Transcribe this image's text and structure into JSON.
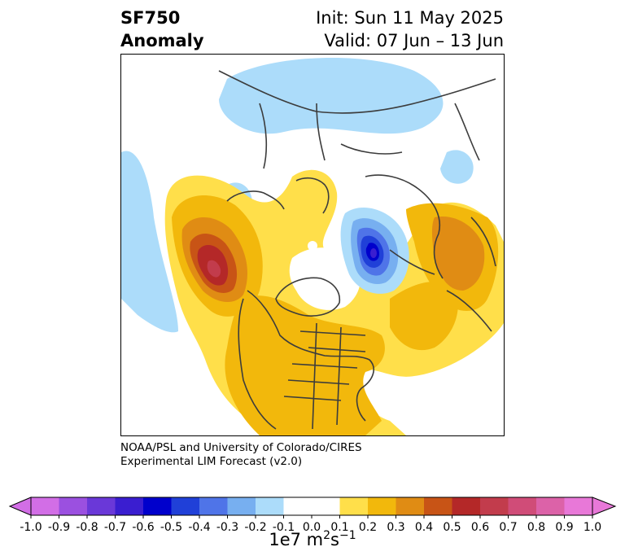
{
  "header": {
    "variable": "SF750",
    "subtitle": "Anomaly",
    "init": "Init: Sun 11 May 2025",
    "valid": "Valid: 07 Jun – 13 Jun"
  },
  "credit": {
    "line1": "NOAA/PSL and University of Colorado/CIRES",
    "line2": "Experimental LIM Forecast (v2.0)"
  },
  "colorbar": {
    "tick_labels": [
      "-1.0",
      "-0.9",
      "-0.8",
      "-0.7",
      "-0.6",
      "-0.5",
      "-0.4",
      "-0.3",
      "-0.2",
      "-0.1",
      "0.0",
      "0.1",
      "0.2",
      "0.3",
      "0.4",
      "0.5",
      "0.6",
      "0.7",
      "0.8",
      "0.9",
      "1.0"
    ],
    "colors": [
      "#d26ee6",
      "#9b50e0",
      "#6a38d8",
      "#3a1ed0",
      "#0000cc",
      "#2040d8",
      "#4f74e8",
      "#77aff0",
      "#acdcfa",
      "#ffffff",
      "#ffffff",
      "#ffdf4a",
      "#f2b80c",
      "#e08c14",
      "#c85416",
      "#b42828",
      "#c23c4c",
      "#d04c78",
      "#dc62a8",
      "#e878d8"
    ],
    "units_base": "1e7 m",
    "units_exp1": "2",
    "units_mid": "s",
    "units_exp2": "−1"
  },
  "map": {
    "projection": "north-polar-stereographic",
    "anomaly_centers": [
      {
        "region": "northeast-pacific",
        "sign": "positive",
        "max_level": 0.7
      },
      {
        "region": "northwest-russia",
        "sign": "negative",
        "max_level": -0.6
      },
      {
        "region": "central-asia",
        "sign": "positive",
        "max_level": 0.4
      },
      {
        "region": "north-atlantic",
        "sign": "positive",
        "max_level": 0.3
      },
      {
        "region": "north-america",
        "sign": "positive",
        "max_level": 0.3
      }
    ]
  }
}
